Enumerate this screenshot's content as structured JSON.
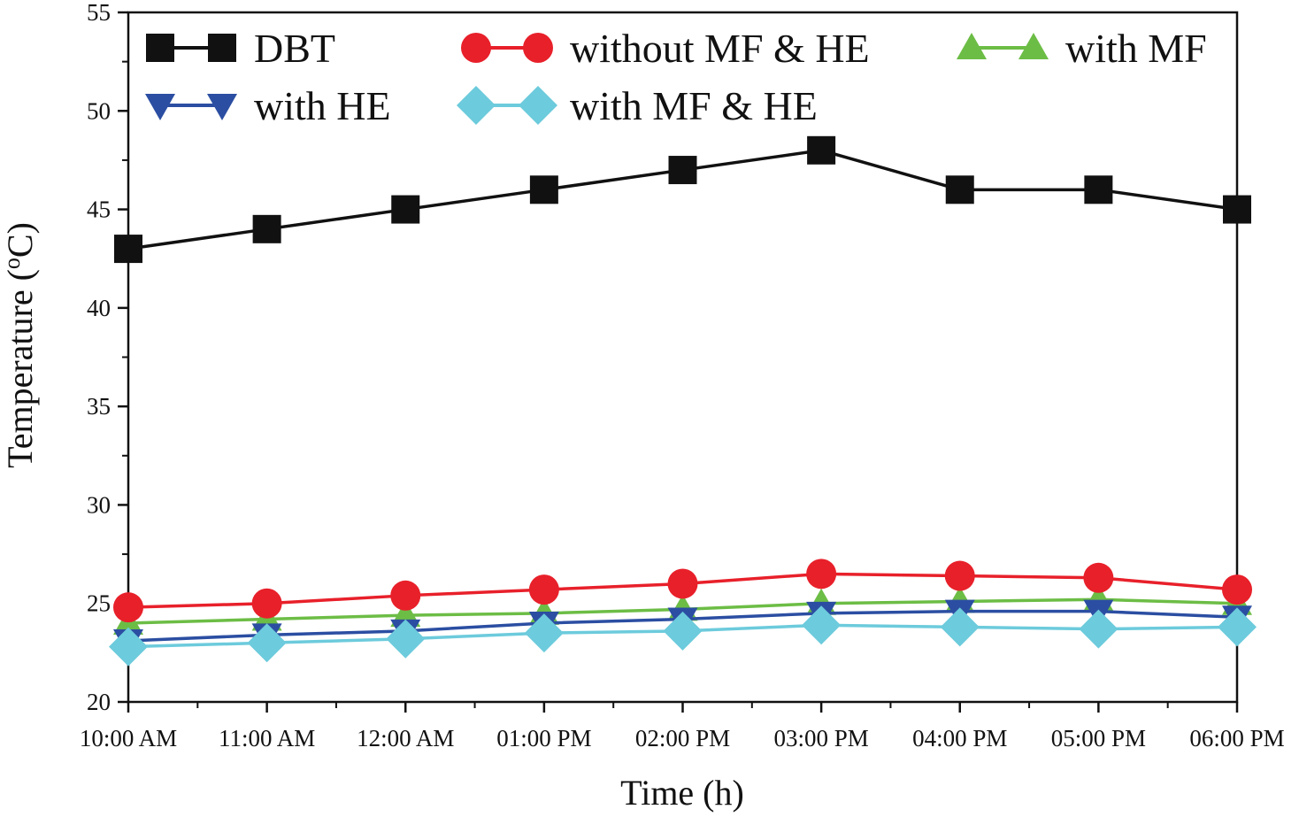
{
  "chart_data": {
    "type": "line",
    "title": "",
    "xlabel": "Time (h)",
    "ylabel": "Temperature (°C)",
    "ylabel_parts": {
      "prefix": "Temperature (",
      "superscript": "o",
      "suffix": "C)"
    },
    "ylim": [
      20,
      55
    ],
    "yticks": [
      20,
      25,
      30,
      35,
      40,
      45,
      50,
      55
    ],
    "categories": [
      "10:00 AM",
      "11:00 AM",
      "12:00 AM",
      "01:00 PM",
      "02:00 PM",
      "03:00 PM",
      "04:00 PM",
      "05:00 PM",
      "06:00 PM"
    ],
    "grid": false,
    "legend_position": "top",
    "series": [
      {
        "name": "DBT",
        "marker": "square",
        "color": "#111111",
        "values": [
          43,
          44,
          45,
          46,
          47,
          48,
          46,
          46,
          45
        ]
      },
      {
        "name": "without MF & HE",
        "marker": "circle",
        "color": "#e8202a",
        "values": [
          24.8,
          25.0,
          25.4,
          25.7,
          26.0,
          26.5,
          26.4,
          26.3,
          25.7
        ]
      },
      {
        "name": "with MF",
        "marker": "triangle-up",
        "color": "#6cbd45",
        "values": [
          24.0,
          24.2,
          24.4,
          24.5,
          24.7,
          25.0,
          25.1,
          25.2,
          25.0
        ]
      },
      {
        "name": "with HE",
        "marker": "triangle-down",
        "color": "#2b4ea2",
        "values": [
          23.1,
          23.4,
          23.6,
          24.0,
          24.2,
          24.5,
          24.6,
          24.6,
          24.3
        ]
      },
      {
        "name": "with MF & HE",
        "marker": "diamond",
        "color": "#6ccbdc",
        "values": [
          22.8,
          23.0,
          23.2,
          23.5,
          23.6,
          23.9,
          23.8,
          23.7,
          23.8
        ]
      }
    ]
  }
}
